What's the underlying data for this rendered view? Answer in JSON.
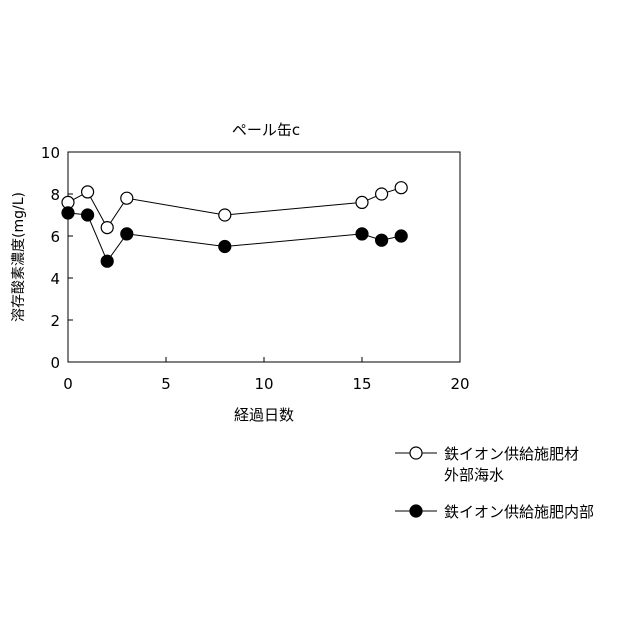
{
  "chart_data": {
    "type": "line",
    "title": "ペール缶c",
    "xlabel": "経過日数",
    "ylabel": "溶存酸素濃度(mg/L)",
    "xlim": [
      0,
      20
    ],
    "ylim": [
      0,
      10
    ],
    "xticks": [
      0,
      5,
      10,
      15,
      20
    ],
    "yticks": [
      0,
      2,
      4,
      6,
      8,
      10
    ],
    "grid": false,
    "legend_position": "bottom-right",
    "series": [
      {
        "name_lines": [
          "鉄イオン供給施肥材",
          "外部海水"
        ],
        "marker": "open-circle",
        "color": "#000000",
        "x": [
          0,
          1,
          2,
          3,
          8,
          15,
          16,
          17
        ],
        "y": [
          7.6,
          8.1,
          6.4,
          7.8,
          7.0,
          7.6,
          8.0,
          8.3
        ]
      },
      {
        "name_lines": [
          "鉄イオン供給施肥内部"
        ],
        "marker": "filled-circle",
        "color": "#000000",
        "x": [
          0,
          1,
          2,
          3,
          8,
          15,
          16,
          17
        ],
        "y": [
          7.1,
          7.0,
          4.8,
          6.1,
          5.5,
          6.1,
          5.8,
          6.0
        ]
      }
    ]
  }
}
